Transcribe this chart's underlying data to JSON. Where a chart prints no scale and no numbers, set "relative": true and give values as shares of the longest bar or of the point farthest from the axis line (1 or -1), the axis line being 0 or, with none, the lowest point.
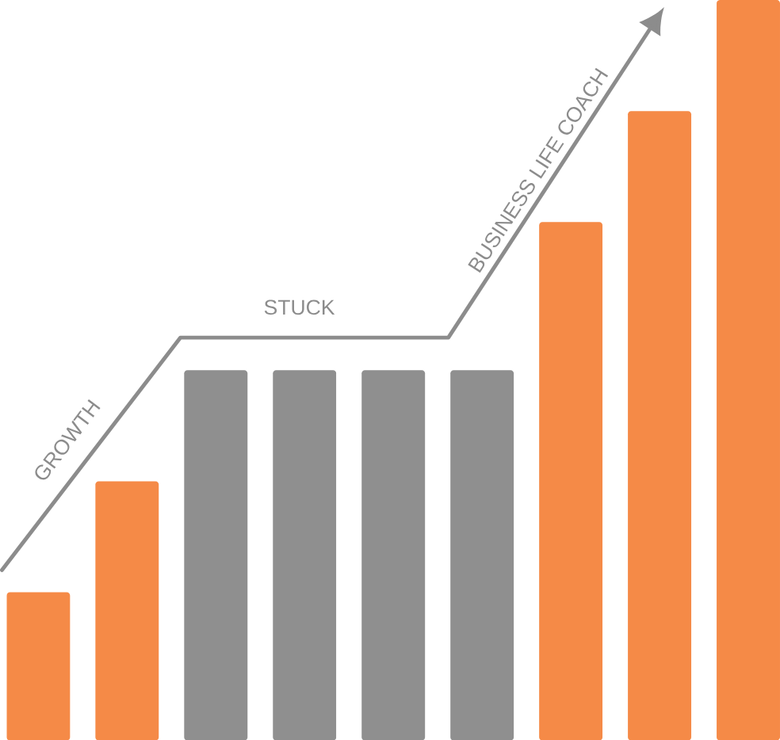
{
  "chart_data": {
    "type": "bar",
    "relative": true,
    "categories": [
      null,
      null,
      null,
      null,
      null,
      null,
      null,
      null,
      null
    ],
    "values": [
      0.2,
      0.35,
      0.5,
      0.5,
      0.5,
      0.5,
      0.7,
      0.85,
      1
    ],
    "colors": [
      "#f58a47",
      "#f58a47",
      "#8f8f8f",
      "#8f8f8f",
      "#8f8f8f",
      "#8f8f8f",
      "#f58a47",
      "#f58a47",
      "#f58a47"
    ],
    "annotations": [
      "GROWTH",
      "STUCK",
      "BUSINESS LIFE COACH"
    ]
  }
}
